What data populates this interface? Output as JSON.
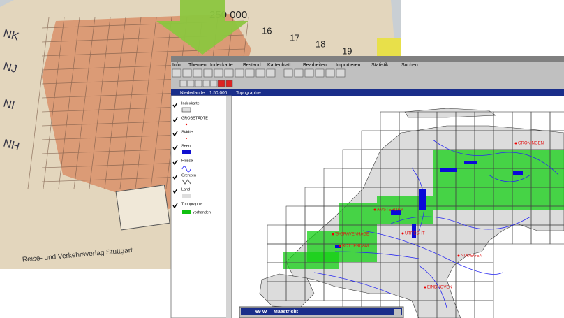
{
  "photo": {
    "scale_label": "250 000",
    "zone_labels": [
      "NK",
      "NJ",
      "NI",
      "NH"
    ],
    "column_labels": [
      "16",
      "17",
      "18",
      "19"
    ],
    "publisher": "Reise- und Verkehrsverlag Stuttgart"
  },
  "app": {
    "menu": [
      "Info",
      "Themen",
      "Indexkarte",
      "Bestand",
      "Kartenblatt",
      "Bearbeiten",
      "Importieren",
      "Statistik",
      "Suchen"
    ],
    "view_title": "Niederlande",
    "view_scale": "1:50.000",
    "view_theme": "Topographie",
    "legend": [
      "Indexkarte",
      "GROSSTÄDTE",
      "Städte",
      "Seen",
      "Flüsse",
      "Grenzen",
      "Land",
      "Topographie"
    ],
    "legend_sub": "vorhanden",
    "city_labels": [
      "GRONINGEN",
      "AMSTERDAM",
      "'S-GRAVENHAGE",
      "UTRECHT",
      "ROTTERDAM",
      "NIJMEGEN",
      "EINDHOVEN"
    ],
    "status_sheet": "69 W",
    "status_name": "Maastricht"
  }
}
